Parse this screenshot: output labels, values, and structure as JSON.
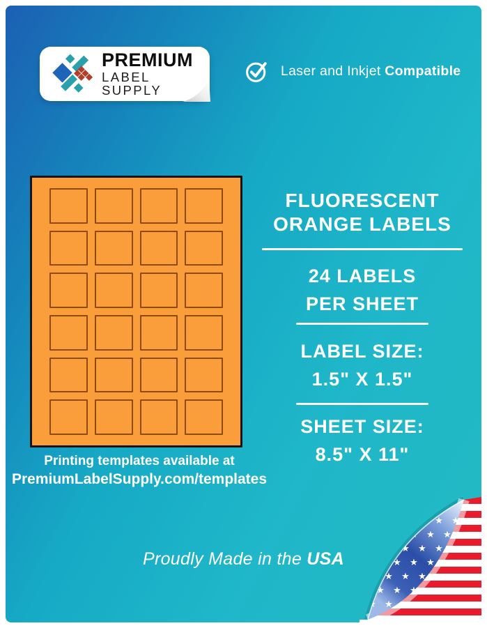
{
  "brand": {
    "name_line1": "PREMIUM",
    "name_line2": "LABEL SUPPLY",
    "logo_colors": {
      "blue": "#1e64b8",
      "teal": "#2ba0ad",
      "red": "#b23e2c"
    }
  },
  "compatibility": {
    "text_regular": "Laser and Inkjet ",
    "text_bold": "Compatible"
  },
  "sheet": {
    "labels_per_sheet": 24,
    "columns": 4,
    "rows": 6,
    "paper_color": "#f99e3b",
    "label_outline_color": "#8f4a10"
  },
  "templates_note": {
    "line1": "Printing templates available at",
    "line2": "PremiumLabelSupply.com/templates"
  },
  "product": {
    "title_line1": "FLUORESCENT",
    "title_line2": "ORANGE LABELS",
    "count_line1": "24 LABELS",
    "count_line2": "PER SHEET",
    "label_size_label": "LABEL SIZE:",
    "label_size_value": "1.5\" X 1.5\"",
    "sheet_size_label": "SHEET SIZE:",
    "sheet_size_value": "8.5\" X 11\""
  },
  "footer": {
    "made_in_regular": "Proudly Made in the ",
    "made_in_bold": "USA"
  },
  "flag": {
    "star_glyph": "★",
    "stripe_red": "#e81c2c",
    "field_blue": "#2b4da6"
  },
  "background": {
    "gradient_start": "#1c60b3",
    "gradient_end": "#23bac2"
  }
}
